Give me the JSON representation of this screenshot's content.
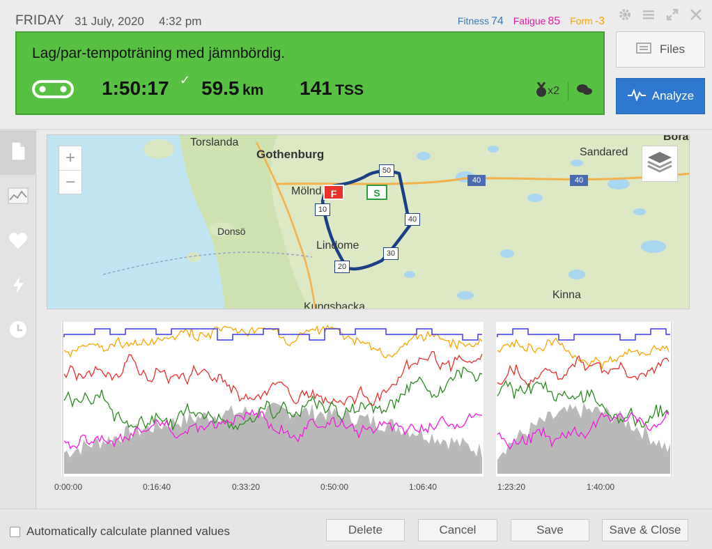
{
  "header": {
    "day": "FRIDAY",
    "date": "31 July, 2020",
    "time": "4:32 pm",
    "metrics": {
      "fitness_label": "Fitness",
      "fitness_value": "74",
      "fatigue_label": "Fatigue",
      "fatigue_value": "85",
      "form_label": "Form",
      "form_value": "-3"
    }
  },
  "workout": {
    "title": "Lag/par-tempoträning med jämnbördig.",
    "duration": "1:50:17",
    "distance": "59.5",
    "distance_unit": "km",
    "tss": "141",
    "tss_unit": "TSS",
    "medals": "x2",
    "sport_icon": "bike-chain-icon",
    "color": "#58c143"
  },
  "buttons": {
    "files": "Files",
    "analyze": "Analyze",
    "analyze_color": "#2f78cf"
  },
  "sidebar": {
    "items": [
      {
        "icon": "document-icon",
        "active": true
      },
      {
        "icon": "chart-icon",
        "active": false
      },
      {
        "icon": "heart-icon",
        "active": false
      },
      {
        "icon": "lightning-icon",
        "active": false
      },
      {
        "icon": "clock-icon",
        "active": false
      }
    ]
  },
  "map": {
    "labels": {
      "torslanda": "Torslanda",
      "gothenburg": "Gothenburg",
      "sandared": "Sandared",
      "boras": "Borås",
      "molndal": "Mölnd",
      "donso": "Donsö",
      "lindome": "Lindome",
      "kinna": "Kinna",
      "kungsbacka": "Kungsbacka"
    },
    "markers": {
      "finish": "F",
      "start": "S"
    },
    "road_labels": [
      "40",
      "40"
    ],
    "distance_markers": [
      "10",
      "20",
      "30",
      "40",
      "50"
    ]
  },
  "chart_data": {
    "type": "line",
    "x_ticks": [
      "0:00:00",
      "0:16:40",
      "0:33:20",
      "0:50:00",
      "1:06:40",
      "1:23:20",
      "1:40:00"
    ],
    "series": [
      {
        "color": "#3a3aee"
      },
      {
        "color": "#f7a500"
      },
      {
        "color": "#e8302c"
      },
      {
        "color": "#2d8a22"
      },
      {
        "color": "#f21be0"
      },
      {
        "color": "#8a8a8a"
      }
    ],
    "grid": false
  },
  "footer": {
    "auto_calc_label": "Automatically calculate planned values",
    "delete": "Delete",
    "cancel": "Cancel",
    "save": "Save",
    "save_close": "Save & Close"
  }
}
